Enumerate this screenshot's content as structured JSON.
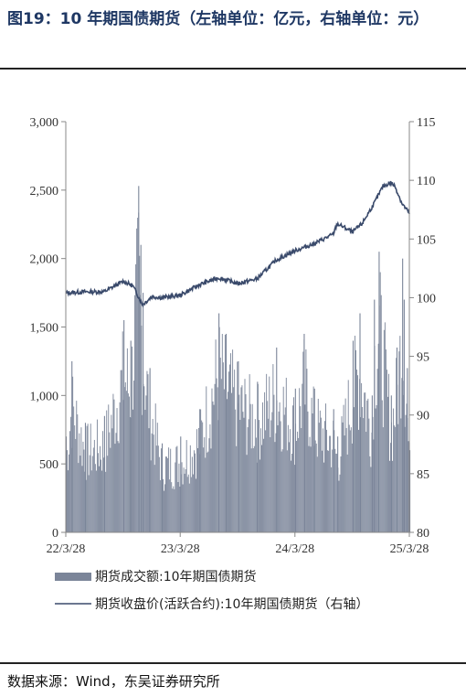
{
  "figure": {
    "title": "图19：10 年期国债期货（左轴单位：亿元，右轴单位：元）",
    "source": "数据来源：Wind，东吴证券研究所"
  },
  "chart_data": {
    "type": "bar",
    "title": "图19：10 年期国债期货（左轴单位：亿元，右轴单位：元）",
    "x_tick_labels": [
      "22/3/28",
      "23/3/28",
      "24/3/28",
      "25/3/28"
    ],
    "x_range": [
      "2022-03-28",
      "2025-03-28"
    ],
    "y_left": {
      "range": [
        0,
        3000
      ],
      "ticks": [
        0,
        500,
        1000,
        1500,
        2000,
        2500,
        3000
      ],
      "tick_labels": [
        "0",
        "500",
        "1,000",
        "1,500",
        "2,000",
        "2,500",
        "3,000"
      ]
    },
    "y_right": {
      "range": [
        80,
        115
      ],
      "ticks": [
        80,
        85,
        90,
        95,
        100,
        105,
        110,
        115
      ],
      "tick_labels": [
        "80",
        "85",
        "90",
        "95",
        "100",
        "105",
        "110",
        "115"
      ]
    },
    "grid": false,
    "legend_position": "bottom",
    "series": [
      {
        "name": "期货成交额:10年期国债期货",
        "type": "bar",
        "axis": "left",
        "color": "#7b8599",
        "note_points_dates": [
          "2022-03-28",
          "2022-05-28",
          "2022-07-28",
          "2022-09-28",
          "2022-11-14",
          "2022-11-28",
          "2023-01-28",
          "2023-03-28",
          "2023-05-28",
          "2023-07-28",
          "2023-09-28",
          "2023-11-28",
          "2024-01-28",
          "2024-03-28",
          "2024-05-28",
          "2024-07-28",
          "2024-09-28",
          "2024-11-28",
          "2025-01-28",
          "2025-03-10",
          "2025-03-28"
        ],
        "points": [
          [
            "2022-03-28",
            700
          ],
          [
            "2022-04-15",
            1250
          ],
          [
            "2022-05-28",
            800
          ],
          [
            "2022-07-28",
            850
          ],
          [
            "2022-09-28",
            1550
          ],
          [
            "2022-10-20",
            1400
          ],
          [
            "2022-11-14",
            2530
          ],
          [
            "2022-11-21",
            2100
          ],
          [
            "2022-11-28",
            1750
          ],
          [
            "2022-12-20",
            1200
          ],
          [
            "2023-01-28",
            650
          ],
          [
            "2023-03-28",
            700
          ],
          [
            "2023-05-28",
            900
          ],
          [
            "2023-07-28",
            1600
          ],
          [
            "2023-08-20",
            1450
          ],
          [
            "2023-09-28",
            1250
          ],
          [
            "2023-11-28",
            1100
          ],
          [
            "2024-01-28",
            1350
          ],
          [
            "2024-03-28",
            1050
          ],
          [
            "2024-04-25",
            1450
          ],
          [
            "2024-05-28",
            1050
          ],
          [
            "2024-07-28",
            900
          ],
          [
            "2024-08-10",
            700
          ],
          [
            "2024-09-28",
            1400
          ],
          [
            "2024-10-20",
            1600
          ],
          [
            "2024-11-28",
            1000
          ],
          [
            "2024-12-05",
            1700
          ],
          [
            "2024-12-20",
            2050
          ],
          [
            "2025-01-28",
            1000
          ],
          [
            "2025-02-15",
            1350
          ],
          [
            "2025-03-05",
            2000
          ],
          [
            "2025-03-10",
            1700
          ],
          [
            "2025-03-20",
            1200
          ],
          [
            "2025-03-28",
            600
          ]
        ]
      },
      {
        "name": "期货收盘价(活跃合约):10年期国债期货（右轴）",
        "type": "line",
        "axis": "right",
        "color": "#3a4a6b",
        "points": [
          [
            "2022-03-28",
            100.4
          ],
          [
            "2022-05-28",
            100.5
          ],
          [
            "2022-07-28",
            100.5
          ],
          [
            "2022-09-28",
            101.4
          ],
          [
            "2022-10-28",
            101.0
          ],
          [
            "2022-11-28",
            99.4
          ],
          [
            "2022-12-28",
            100.1
          ],
          [
            "2023-01-28",
            100.0
          ],
          [
            "2023-03-28",
            100.2
          ],
          [
            "2023-05-28",
            101.1
          ],
          [
            "2023-07-28",
            101.7
          ],
          [
            "2023-09-28",
            101.2
          ],
          [
            "2023-11-28",
            101.6
          ],
          [
            "2024-01-28",
            103.2
          ],
          [
            "2024-03-28",
            104.0
          ],
          [
            "2024-05-28",
            104.6
          ],
          [
            "2024-07-28",
            105.4
          ],
          [
            "2024-08-10",
            106.3
          ],
          [
            "2024-09-28",
            105.6
          ],
          [
            "2024-10-28",
            106.3
          ],
          [
            "2024-12-05",
            108.0
          ],
          [
            "2025-01-03",
            109.5
          ],
          [
            "2025-01-28",
            109.8
          ],
          [
            "2025-02-10",
            109.5
          ],
          [
            "2025-03-05",
            108.0
          ],
          [
            "2025-03-28",
            107.2
          ]
        ]
      }
    ]
  }
}
